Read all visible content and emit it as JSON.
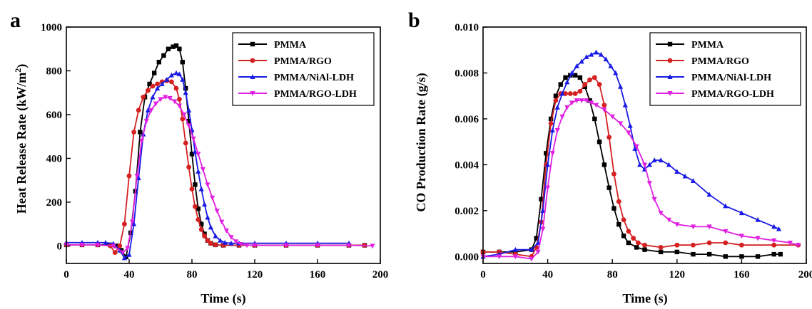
{
  "chart_data": [
    {
      "type": "line",
      "panel_label": "a",
      "xlabel": "Time (s)",
      "ylabel": "Heat Release Rate (kW/m²)",
      "xlim": [
        0,
        200
      ],
      "ylim": [
        -80,
        1000
      ],
      "xticks": [
        0,
        40,
        80,
        120,
        160,
        200
      ],
      "yticks": [
        0,
        200,
        400,
        600,
        800,
        1000
      ],
      "legend_position": "top-right",
      "series": [
        {
          "name": "PMMA",
          "color": "#000000",
          "marker": "square",
          "x": [
            0,
            10,
            20,
            28,
            32,
            35,
            38,
            41,
            44,
            47,
            50,
            53,
            56,
            59,
            62,
            65,
            68,
            70,
            72,
            74,
            76,
            78,
            80,
            82,
            84,
            86,
            88,
            90,
            92,
            95,
            100,
            110,
            120,
            140,
            160,
            180,
            190
          ],
          "y": [
            5,
            5,
            5,
            5,
            0,
            -20,
            -50,
            60,
            250,
            520,
            680,
            740,
            790,
            840,
            870,
            900,
            910,
            915,
            900,
            840,
            720,
            570,
            420,
            280,
            170,
            100,
            55,
            25,
            12,
            5,
            3,
            3,
            3,
            3,
            3,
            3,
            3
          ]
        },
        {
          "name": "PMMA/RGO",
          "color": "#d42020",
          "marker": "circle",
          "x": [
            0,
            10,
            20,
            28,
            31,
            34,
            37,
            40,
            43,
            46,
            49,
            52,
            55,
            58,
            61,
            64,
            67,
            70,
            72,
            74,
            76,
            78,
            80,
            82,
            84,
            86,
            88,
            90,
            92,
            95,
            100,
            110,
            120,
            140,
            160,
            180,
            190
          ],
          "y": [
            5,
            5,
            5,
            0,
            -30,
            0,
            100,
            320,
            520,
            620,
            680,
            710,
            730,
            740,
            750,
            755,
            750,
            720,
            670,
            580,
            470,
            360,
            260,
            180,
            120,
            75,
            45,
            25,
            12,
            5,
            3,
            3,
            3,
            3,
            3,
            3,
            3
          ]
        },
        {
          "name": "PMMA/NiAl-LDH",
          "color": "#1a1ae6",
          "marker": "triangle-up",
          "x": [
            0,
            10,
            20,
            25,
            30,
            34,
            37,
            40,
            43,
            46,
            49,
            52,
            55,
            58,
            61,
            64,
            67,
            70,
            72,
            74,
            76,
            78,
            80,
            82,
            84,
            86,
            88,
            90,
            92,
            95,
            98,
            101,
            105,
            110,
            120,
            140,
            160,
            180
          ],
          "y": [
            15,
            15,
            15,
            15,
            10,
            -20,
            -55,
            -40,
            100,
            310,
            510,
            620,
            680,
            720,
            740,
            760,
            780,
            790,
            785,
            760,
            700,
            620,
            530,
            430,
            340,
            260,
            190,
            130,
            85,
            45,
            25,
            15,
            12,
            12,
            12,
            12,
            12,
            12
          ]
        },
        {
          "name": "PMMA/RGO-LDH",
          "color": "#e020e0",
          "marker": "triangle-down",
          "x": [
            0,
            10,
            20,
            30,
            36,
            39,
            42,
            45,
            48,
            51,
            54,
            57,
            60,
            63,
            66,
            69,
            72,
            75,
            78,
            81,
            84,
            87,
            90,
            93,
            96,
            99,
            102,
            105,
            108,
            111,
            115,
            120,
            140,
            160,
            180,
            195
          ],
          "y": [
            5,
            5,
            5,
            0,
            -30,
            -10,
            110,
            320,
            480,
            570,
            620,
            650,
            670,
            680,
            675,
            660,
            640,
            600,
            550,
            490,
            420,
            350,
            280,
            220,
            160,
            110,
            70,
            40,
            20,
            8,
            3,
            3,
            3,
            3,
            3,
            0
          ]
        }
      ]
    },
    {
      "type": "line",
      "panel_label": "b",
      "xlabel": "Time (s)",
      "ylabel": "CO Production Rate (g/s)",
      "xlim": [
        0,
        200
      ],
      "ylim": [
        -0.0003,
        0.01
      ],
      "xticks": [
        0,
        40,
        80,
        120,
        160,
        200
      ],
      "yticks": [
        0.0,
        0.002,
        0.004,
        0.006,
        0.008,
        0.01
      ],
      "ytick_labels": [
        "0.000",
        "0.002",
        "0.004",
        "0.006",
        "0.008",
        "0.010"
      ],
      "legend_position": "top-right",
      "series": [
        {
          "name": "PMMA",
          "color": "#000000",
          "marker": "square",
          "x": [
            0,
            10,
            20,
            30,
            33,
            36,
            39,
            42,
            45,
            48,
            51,
            54,
            57,
            60,
            63,
            66,
            69,
            72,
            75,
            78,
            81,
            84,
            87,
            90,
            95,
            100,
            110,
            120,
            130,
            140,
            150,
            160,
            170,
            180,
            184
          ],
          "y": [
            0.0002,
            0.0002,
            0.0002,
            0.0003,
            0.0008,
            0.0025,
            0.0045,
            0.006,
            0.007,
            0.0075,
            0.0078,
            0.0079,
            0.0079,
            0.0078,
            0.0074,
            0.0068,
            0.006,
            0.005,
            0.004,
            0.003,
            0.0021,
            0.0014,
            0.0009,
            0.0006,
            0.0004,
            0.0003,
            0.0002,
            0.0002,
            0.0001,
            0.0001,
            0.0,
            0.0,
            0.0,
            0.0001,
            0.0001
          ]
        },
        {
          "name": "PMMA/RGO",
          "color": "#d42020",
          "marker": "circle",
          "x": [
            0,
            10,
            20,
            30,
            33,
            36,
            39,
            42,
            45,
            48,
            51,
            54,
            57,
            60,
            63,
            66,
            69,
            72,
            75,
            78,
            81,
            84,
            87,
            90,
            93,
            96,
            100,
            110,
            120,
            130,
            140,
            150,
            160,
            180,
            195
          ],
          "y": [
            0.0002,
            0.0002,
            0.0001,
            0.0,
            0.0004,
            0.0015,
            0.004,
            0.0058,
            0.0068,
            0.0071,
            0.0071,
            0.0071,
            0.0071,
            0.0072,
            0.0075,
            0.0077,
            0.0078,
            0.0075,
            0.0066,
            0.0052,
            0.0036,
            0.0024,
            0.0016,
            0.0011,
            0.0008,
            0.0006,
            0.0005,
            0.0004,
            0.0005,
            0.0005,
            0.0006,
            0.0006,
            0.0005,
            0.0005,
            0.0005
          ]
        },
        {
          "name": "PMMA/NiAl-LDH",
          "color": "#1a1ae6",
          "marker": "triangle-up",
          "x": [
            0,
            10,
            20,
            30,
            34,
            37,
            40,
            43,
            46,
            49,
            52,
            55,
            58,
            61,
            64,
            67,
            70,
            73,
            76,
            79,
            82,
            85,
            88,
            91,
            94,
            97,
            100,
            103,
            106,
            110,
            115,
            120,
            125,
            130,
            140,
            150,
            160,
            170,
            180,
            183
          ],
          "y": [
            0.0,
            0.0001,
            0.0003,
            0.0003,
            0.0006,
            0.002,
            0.004,
            0.0055,
            0.0065,
            0.0071,
            0.0076,
            0.008,
            0.0083,
            0.0085,
            0.0087,
            0.0088,
            0.0089,
            0.0088,
            0.0086,
            0.0083,
            0.008,
            0.0074,
            0.0066,
            0.0057,
            0.0047,
            0.004,
            0.0038,
            0.004,
            0.0042,
            0.0042,
            0.004,
            0.0037,
            0.0035,
            0.0033,
            0.0027,
            0.0022,
            0.0019,
            0.0016,
            0.0013,
            0.0012
          ]
        },
        {
          "name": "PMMA/RGO-LDH",
          "color": "#e020e0",
          "marker": "triangle-down",
          "x": [
            0,
            10,
            20,
            30,
            34,
            37,
            40,
            43,
            46,
            49,
            52,
            55,
            58,
            61,
            64,
            67,
            70,
            75,
            80,
            85,
            90,
            95,
            100,
            103,
            106,
            110,
            115,
            120,
            130,
            140,
            150,
            160,
            170,
            180,
            190,
            195
          ],
          "y": [
            0.0,
            0.0,
            0.0,
            -0.0001,
            0.0002,
            0.0012,
            0.003,
            0.0045,
            0.0055,
            0.0061,
            0.0065,
            0.0067,
            0.0068,
            0.0068,
            0.0068,
            0.0067,
            0.0066,
            0.0064,
            0.0061,
            0.0058,
            0.0054,
            0.0048,
            0.004,
            0.0032,
            0.0025,
            0.0019,
            0.0016,
            0.0014,
            0.0013,
            0.0013,
            0.0011,
            0.0009,
            0.0008,
            0.0007,
            0.0006,
            0.0005
          ]
        }
      ]
    }
  ]
}
